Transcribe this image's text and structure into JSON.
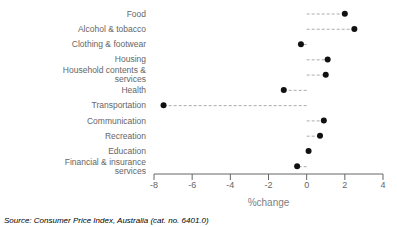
{
  "chart_data": {
    "type": "dot",
    "orientation": "horizontal",
    "categories": [
      "Food",
      "Alcohol & tobacco",
      "Clothing & footwear",
      "Housing",
      "Household contents & services",
      "Health",
      "Transportation",
      "Communication",
      "Recreation",
      "Education",
      "Financial & insurance services"
    ],
    "values": [
      2.0,
      2.5,
      -0.3,
      1.1,
      1.0,
      -1.2,
      -7.5,
      0.9,
      0.7,
      0.1,
      -0.5
    ],
    "color": "#111111",
    "marker": "circle",
    "line_style": "dashed",
    "xlim": [
      -8,
      4
    ],
    "xticks": [
      -8,
      -6,
      -4,
      -2,
      0,
      2,
      4
    ],
    "xlabel": "%change",
    "annotations": [
      "Source: Consumer Price Index, Australia  (cat.  no.  6401.0)"
    ]
  }
}
